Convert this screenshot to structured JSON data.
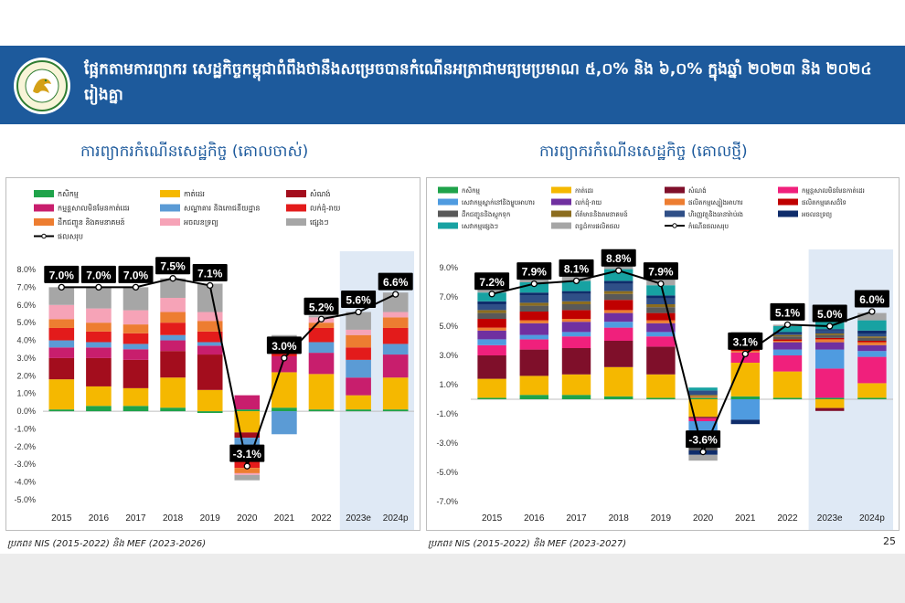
{
  "header": {
    "title": "ផែ្អកតាមការព្យាករ សេដ្ឋកិច្ចកម្ពុជាពំពឹងថានឹងសម្រេចបានកំណើនអត្រាជាមធ្យមប្រមាណ ៥,០% និង ៦,០% ក្នុងឆ្នាំ ២០២៣ និង ២០២៤ រៀងគ្នា",
    "logo_text": "MINISTRY OF ECONOMY AND FINANCE"
  },
  "page_number": "25",
  "colors": {
    "banner": "#1d5a9c",
    "heading": "#1d5a9c",
    "projection_shade": "#dfe9f5"
  },
  "left_chart": {
    "heading": "ការព្យាករកំណើនសេដ្ឋកិច្ច (គោលចាស់)",
    "source": "ប្រភព៖ NIS (2015-2022) និង MEF (2023-2026)"
  },
  "right_chart": {
    "heading": "ការព្យាករកំណើនសេដ្ឋកិច្ច (គោលថ្មី)",
    "source": "ប្រភព៖ NIS (2015-2022) និង MEF (2023-2027)"
  },
  "chart_data": [
    {
      "type": "bar",
      "subtype": "stacked_with_line",
      "title": "ការព្យាករកំណើនសេដ្ឋកិច្ច (គោលចាស់)",
      "categories": [
        "2015",
        "2016",
        "2017",
        "2018",
        "2019",
        "2020",
        "2021",
        "2022",
        "2023e",
        "2024p"
      ],
      "projection_categories": [
        "2023e",
        "2024p"
      ],
      "ylim": [
        -5.0,
        8.0
      ],
      "yticks": [
        8.0,
        7.0,
        6.0,
        5.0,
        4.0,
        3.0,
        2.0,
        1.0,
        0.0,
        -1.0,
        -2.0,
        -3.0,
        -4.0,
        -5.0
      ],
      "tick_format": "%",
      "series": [
        {
          "name": "កសិកម្ម",
          "color": "#1fa34a",
          "values": [
            0.1,
            0.3,
            0.3,
            0.2,
            -0.1,
            0.1,
            0.2,
            0.1,
            0.1,
            0.1
          ]
        },
        {
          "name": "កាត់ដេរ",
          "color": "#f5b800",
          "values": [
            1.7,
            1.1,
            1.0,
            1.7,
            1.2,
            -1.2,
            2.0,
            2.0,
            0.8,
            1.8
          ]
        },
        {
          "name": "សំណង់",
          "color": "#a30d1d",
          "values": [
            1.2,
            1.6,
            1.6,
            1.5,
            2.0,
            -0.3,
            0.0,
            0.0,
            0.0,
            0.0
          ]
        },
        {
          "name": "កម្មន្តសាលមិនមែនកាត់ដេរ",
          "color": "#c81e6d",
          "values": [
            0.6,
            0.6,
            0.6,
            0.6,
            0.5,
            0.8,
            0.9,
            1.2,
            1.0,
            1.3
          ]
        },
        {
          "name": "សណ្ឋាគារ និងភោជនីយដ្ឋាន",
          "color": "#5b9bd5",
          "values": [
            0.4,
            0.3,
            0.3,
            0.3,
            0.2,
            -1.3,
            -1.3,
            0.6,
            1.0,
            0.6
          ]
        },
        {
          "name": "លក់ដុំ-រាយ",
          "color": "#e31b1b",
          "values": [
            0.7,
            0.6,
            0.6,
            0.7,
            0.6,
            -0.4,
            0.4,
            0.8,
            0.7,
            0.9
          ]
        },
        {
          "name": "ដឹកជញ្ជូន និងគមនាគមន៍",
          "color": "#ed7d31",
          "values": [
            0.5,
            0.5,
            0.5,
            0.6,
            0.6,
            -0.3,
            0.2,
            0.3,
            0.7,
            0.6
          ]
        },
        {
          "name": "អចលនទ្រព្យ",
          "color": "#f6a3b7",
          "values": [
            0.8,
            0.8,
            0.8,
            0.8,
            0.5,
            -0.1,
            0.2,
            0.3,
            0.3,
            0.3
          ]
        },
        {
          "name": "ផ្សេងៗ",
          "color": "#a6a6a6",
          "values": [
            1.0,
            1.2,
            1.3,
            1.1,
            1.6,
            -0.3,
            0.4,
            0.1,
            1.0,
            1.1
          ]
        }
      ],
      "line": {
        "name": "ផលសរុប",
        "values": [
          7.0,
          7.0,
          7.0,
          7.5,
          7.1,
          -3.1,
          3.0,
          5.2,
          5.6,
          6.6
        ],
        "labels": [
          "7.0%",
          "7.0%",
          "7.0%",
          "7.5%",
          "7.1%",
          "-3.1%",
          "3.0%",
          "5.2%",
          "5.6%",
          "6.6%"
        ]
      }
    },
    {
      "type": "bar",
      "subtype": "stacked_with_line",
      "title": "ការព្យាករកំណើនសេដ្ឋកិច្ច (គោលថ្មី)",
      "categories": [
        "2015",
        "2016",
        "2017",
        "2018",
        "2019",
        "2020",
        "2021",
        "2022",
        "2023e",
        "2024p"
      ],
      "projection_categories": [
        "2023e",
        "2024p"
      ],
      "ylim": [
        -7.0,
        9.0
      ],
      "yticks": [
        9.0,
        7.0,
        5.0,
        3.0,
        1.0,
        -1.0,
        -3.0,
        -5.0,
        -7.0
      ],
      "tick_format": "%",
      "series": [
        {
          "name": "កសិកម្ម",
          "color": "#1fa34a",
          "values": [
            0.1,
            0.3,
            0.3,
            0.2,
            0.1,
            0.1,
            0.2,
            0.1,
            0.1,
            0.1
          ]
        },
        {
          "name": "កាត់ដេរ",
          "color": "#f5b800",
          "values": [
            1.3,
            1.3,
            1.4,
            2.0,
            1.6,
            -1.2,
            2.3,
            1.8,
            -0.6,
            1.0
          ]
        },
        {
          "name": "សំណង់",
          "color": "#7f0f2a",
          "values": [
            1.6,
            1.8,
            1.8,
            1.8,
            1.9,
            -0.1,
            0.0,
            0.0,
            -0.2,
            0.0
          ]
        },
        {
          "name": "កម្មន្តសាលមិនមែនកាត់ដេរ",
          "color": "#f0207c",
          "values": [
            0.7,
            0.7,
            0.8,
            0.9,
            0.7,
            -0.2,
            0.7,
            1.1,
            2.0,
            1.8
          ]
        },
        {
          "name": "សេវាកម្មស្នាក់នៅនិងម្ហូបអាហារ",
          "color": "#4f9be0",
          "values": [
            0.4,
            0.3,
            0.3,
            0.4,
            0.3,
            -1.2,
            -1.4,
            0.4,
            1.3,
            0.4
          ]
        },
        {
          "name": "លក់ដុំ-រាយ",
          "color": "#7030a0",
          "values": [
            0.6,
            0.8,
            0.7,
            0.6,
            0.6,
            -0.4,
            0.0,
            0.5,
            0.5,
            0.4
          ]
        },
        {
          "name": "ផលិតកម្មស្បៀងអាហារ",
          "color": "#ed7d31",
          "values": [
            0.2,
            0.2,
            0.2,
            0.2,
            0.2,
            0.1,
            0.1,
            0.1,
            0.2,
            0.2
          ]
        },
        {
          "name": "ផលិតកម្មគេសដ៏ទៃ",
          "color": "#c00000",
          "values": [
            0.6,
            0.6,
            0.6,
            0.7,
            0.5,
            -0.2,
            0.1,
            0.1,
            0.1,
            0.1
          ]
        },
        {
          "name": "ដឹកជញ្ជូននិងស្តុកទុក",
          "color": "#595959",
          "values": [
            0.4,
            0.4,
            0.4,
            0.4,
            0.4,
            -0.2,
            0.1,
            0.2,
            0.2,
            0.2
          ]
        },
        {
          "name": "ព័ត៌មាននិងគមនាគមន៍",
          "color": "#8c6d1f",
          "values": [
            0.2,
            0.2,
            0.2,
            0.2,
            0.2,
            0.1,
            0.1,
            0.1,
            0.1,
            0.1
          ]
        },
        {
          "name": "ហិរញ្ញវត្ថុនិងធានារ៉ាប់រង",
          "color": "#2f4f87",
          "values": [
            0.4,
            0.5,
            0.5,
            0.5,
            0.4,
            0.3,
            0.1,
            0.1,
            0.2,
            0.2
          ]
        },
        {
          "name": "អចលនទ្រព្យ",
          "color": "#0f2d6b",
          "values": [
            0.2,
            0.2,
            0.2,
            0.2,
            0.2,
            -0.3,
            -0.3,
            0.1,
            0.1,
            0.2
          ]
        },
        {
          "name": "សេវាកម្មផ្សេងៗ",
          "color": "#17a2a2",
          "values": [
            0.6,
            0.7,
            0.7,
            0.8,
            0.7,
            0.2,
            0.5,
            0.4,
            0.7,
            0.7
          ]
        },
        {
          "name": "ពន្ធដំការផលិតផល",
          "color": "#a6a6a6",
          "values": [
            0.3,
            0.3,
            0.4,
            0.4,
            0.6,
            -0.4,
            0.4,
            0.1,
            0.3,
            0.5
          ]
        }
      ],
      "line": {
        "name": "កំណើនផលសរុប",
        "values": [
          7.2,
          7.9,
          8.1,
          8.8,
          7.9,
          -3.6,
          3.1,
          5.1,
          5.0,
          6.0
        ],
        "labels": [
          "7.2%",
          "7.9%",
          "8.1%",
          "8.8%",
          "7.9%",
          "-3.6%",
          "3.1%",
          "5.1%",
          "5.0%",
          "6.0%"
        ]
      }
    }
  ]
}
